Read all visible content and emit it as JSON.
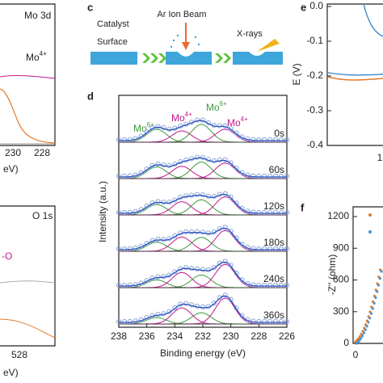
{
  "panel_a": {
    "label_1": "Mo 3d",
    "species": {
      "base": "Mo",
      "sup": "4+"
    },
    "ticks": [
      "230",
      "228"
    ],
    "axis_label": "eV)"
  },
  "panel_b": {
    "label_1": "O 1s",
    "species": "-O",
    "ticks": [
      "528"
    ],
    "axis_label": "eV)"
  },
  "panel_c": {
    "letter": "c",
    "text_1": "Catalyst",
    "text_2": "Surface",
    "beam": "Ar Ion Beam",
    "xrays": "X-rays"
  },
  "panel_d": {
    "letter": "d",
    "species": [
      {
        "base": "Mo",
        "sup": "6+"
      },
      {
        "base": "Mo",
        "sup": "4+"
      },
      {
        "base": "Mo",
        "sup": "6+"
      },
      {
        "base": "Mo",
        "sup": "4+"
      }
    ],
    "times": [
      "0s",
      "60s",
      "120s",
      "180s",
      "240s",
      "360s"
    ],
    "xticks": [
      "238",
      "236",
      "234",
      "232",
      "230",
      "228",
      "226"
    ],
    "xlabel": "Binding energy (eV)",
    "ylabel": "Intensity (a.u.)"
  },
  "panel_e": {
    "letter": "e",
    "yticks": [
      "0.0",
      "-0.1",
      "-0.2",
      "-0.3",
      "-0.4"
    ],
    "xtick": "1",
    "ylabel": "E (V)"
  },
  "panel_f": {
    "letter": "f",
    "yticks": [
      "1200",
      "900",
      "600",
      "300",
      "0"
    ],
    "xtick": "0",
    "ylabel": "-Z'' (ohm)"
  }
}
